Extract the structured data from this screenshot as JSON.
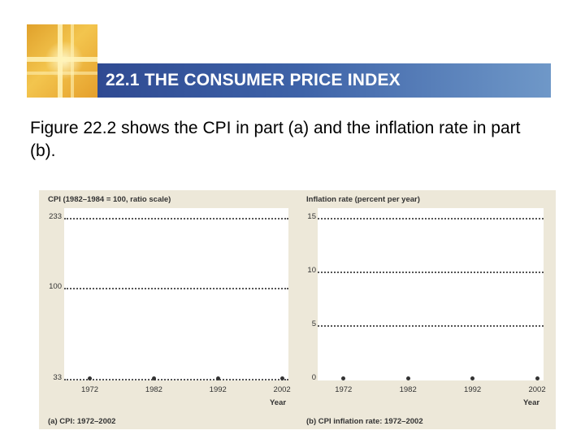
{
  "slide": {
    "title": "22.1 THE CONSUMER PRICE INDEX",
    "body": "Figure 22.2 shows the CPI in part (a) and the inflation rate in part (b).",
    "banner_color": "#3e63a8"
  },
  "chart_data": [
    {
      "type": "line",
      "ylabel": "CPI (1982–1984 = 100, ratio scale)",
      "xlabel": "Year",
      "caption": "(a) CPI: 1972–2002",
      "scale": "log",
      "y_ticks": [
        33,
        100,
        233
      ],
      "ylim": [
        33,
        233
      ],
      "x_ticks": [
        1972,
        1982,
        1992,
        2002
      ],
      "xlim": [
        1968,
        2003
      ],
      "grid": true,
      "series": []
    },
    {
      "type": "line",
      "ylabel": "Inflation rate (percent per year)",
      "xlabel": "Year",
      "caption": "(b) CPI inflation rate: 1972–2002",
      "scale": "linear",
      "y_ticks": [
        0,
        5,
        10,
        15
      ],
      "ylim": [
        0,
        15
      ],
      "x_ticks": [
        1972,
        1982,
        1992,
        2002
      ],
      "xlim": [
        1968,
        2003
      ],
      "grid": true,
      "series": []
    }
  ]
}
